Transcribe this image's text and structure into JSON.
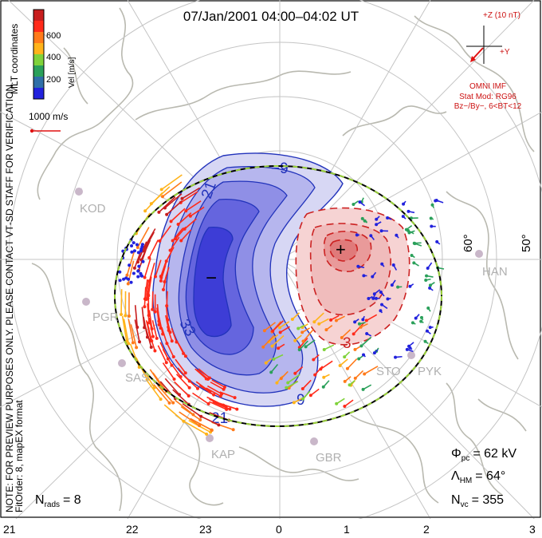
{
  "title": "07/Jan/2001 04:00–04:02 UT",
  "colorbar": {
    "unit_label": "Vel [m/s]",
    "ticks": [
      "600",
      "400",
      "200"
    ],
    "colors": [
      "#c81e1e",
      "#ff2a1a",
      "#ff7a1a",
      "#ffb31a",
      "#7fd23a",
      "#2aa05a",
      "#2f6fa8",
      "#2222dd"
    ]
  },
  "coord_label": "MLT coordinates",
  "scale_vector": "1000 m/s",
  "imf": {
    "z_label": "+Z (10 nT)",
    "y_label": "+Y",
    "source": "OMNI IMF",
    "stat_mod": "Stat Mod: RG96",
    "condition": "Bz−/By−, 6<BT<12"
  },
  "side_note": "NOTE: FOR PREVIEW PURPOSES ONLY. PLEASE CONTACT VT‑SD STAFF FOR VERIFICATION.",
  "fit_order": "FitOrder: 8, mapEX format",
  "lat_labels": [
    "60°",
    "50°"
  ],
  "stations": [
    "KOD",
    "PGR",
    "SAS",
    "KAP",
    "GBR",
    "STO",
    "PYK",
    "HAN"
  ],
  "stats": {
    "phi_label": "Φ",
    "phi_sub": "pc",
    "phi_value": "= 62 kV",
    "lambda_label": "Λ",
    "lambda_sub": "HM",
    "lambda_value": "= 64°",
    "nvc_label": "N",
    "nvc_sub": "vc",
    "nvc_value": "= 355",
    "nrads_label": "N",
    "nrads_sub": "rads",
    "nrads_value": "= 8"
  },
  "mlt_ticks": [
    "21",
    "22",
    "23",
    "0",
    "1",
    "2",
    "3"
  ],
  "chart_data": {
    "type": "map",
    "potential_contours_kV": [
      -33,
      -21,
      -9,
      3
    ],
    "potential_min_label": "−",
    "potential_max_label": "+",
    "contour_labels": [
      "−9",
      "21",
      "33",
      "3",
      "9",
      "21"
    ],
    "cross_polar_cap_potential_kV": 62,
    "heppner_maynard_boundary_deg": 64,
    "num_vectors": 355,
    "num_radars": 8
  }
}
